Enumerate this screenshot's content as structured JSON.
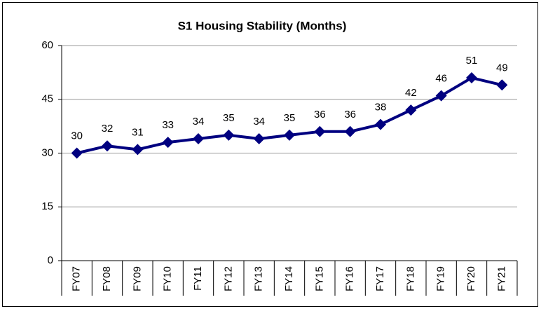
{
  "chart_data": {
    "type": "line",
    "title": "S1 Housing Stability (Months)",
    "categories": [
      "FY07",
      "FY08",
      "FY09",
      "FY10",
      "FY11",
      "FY12",
      "FY13",
      "FY14",
      "FY15",
      "FY16",
      "FY17",
      "FY18",
      "FY19",
      "FY20",
      "FY21"
    ],
    "values": [
      30,
      32,
      31,
      33,
      34,
      35,
      34,
      35,
      36,
      36,
      38,
      42,
      46,
      51,
      49
    ],
    "color": "#000080",
    "ylim": [
      0,
      60
    ],
    "yticks": [
      0,
      15,
      30,
      45,
      60
    ],
    "grid": true
  }
}
